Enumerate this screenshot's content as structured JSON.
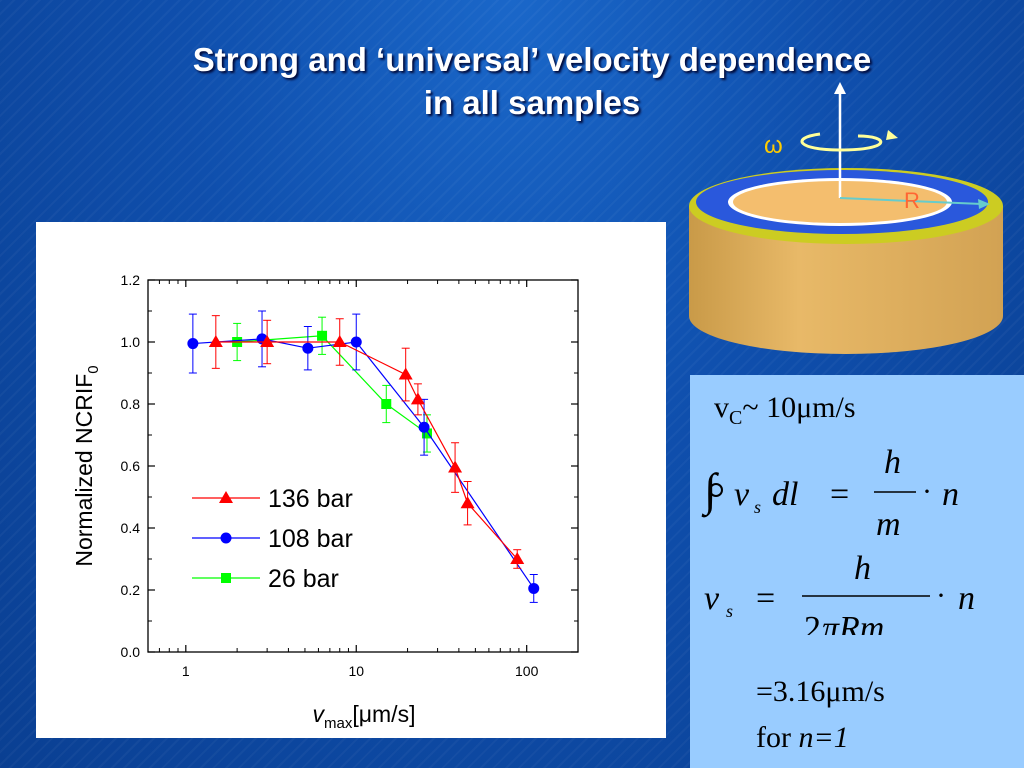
{
  "slide": {
    "title_line1": "Strong and ‘universal’ velocity dependence",
    "title_line2": "in all samples"
  },
  "diagram": {
    "omega_label": "ω",
    "radius_label": "R"
  },
  "formulas": {
    "vc_symbol": "v",
    "vc_sub": "C",
    "vc_value": "~ 10μm/s",
    "eq1": "∮ v_s dl = (h/m) · n",
    "eq2": "v_s = h/(2πRm) · n",
    "result_line1": "=3.16μm/s",
    "result_line2_prefix": "for ",
    "result_line2_var": "n=1"
  },
  "chart_data": {
    "type": "scatter",
    "xlabel_main": "v",
    "xlabel_sub": "max",
    "xlabel_unit": "[μm/s]",
    "ylabel_main": "Normalized NCRIF",
    "ylabel_sub": "0",
    "x_scale": "log",
    "xlim": [
      0.6,
      200
    ],
    "ylim": [
      0.0,
      1.2
    ],
    "x_ticks": [
      1,
      10,
      100
    ],
    "x_tick_labels": [
      "1",
      "10",
      "100"
    ],
    "y_ticks": [
      0.0,
      0.2,
      0.4,
      0.6,
      0.8,
      1.0,
      1.2
    ],
    "y_tick_labels": [
      "0.0",
      "0.2",
      "0.4",
      "0.6",
      "0.8",
      "1.0",
      "1.2"
    ],
    "legend_position": "lower-left",
    "series": [
      {
        "name": "136 bar",
        "color": "#ff0000",
        "marker": "triangle",
        "x": [
          1.5,
          3.0,
          8.0,
          19.5,
          23.0,
          38.0,
          45.0,
          88.0
        ],
        "y": [
          1.0,
          1.0,
          1.0,
          0.895,
          0.815,
          0.595,
          0.48,
          0.3
        ],
        "err": [
          0.085,
          0.07,
          0.075,
          0.085,
          0.05,
          0.08,
          0.07,
          0.03
        ]
      },
      {
        "name": "108 bar",
        "color": "#0000ff",
        "marker": "circle",
        "x": [
          1.1,
          2.8,
          5.2,
          10.0,
          25.0,
          110.0
        ],
        "y": [
          0.995,
          1.01,
          0.98,
          1.0,
          0.725,
          0.205
        ],
        "err": [
          0.095,
          0.09,
          0.07,
          0.09,
          0.09,
          0.045
        ]
      },
      {
        "name": "26 bar",
        "color": "#00ff00",
        "marker": "square",
        "x": [
          2.0,
          6.3,
          15.0,
          26.0
        ],
        "y": [
          1.0,
          1.02,
          0.8,
          0.705
        ],
        "err": [
          0.06,
          0.06,
          0.06,
          0.06
        ]
      }
    ]
  }
}
